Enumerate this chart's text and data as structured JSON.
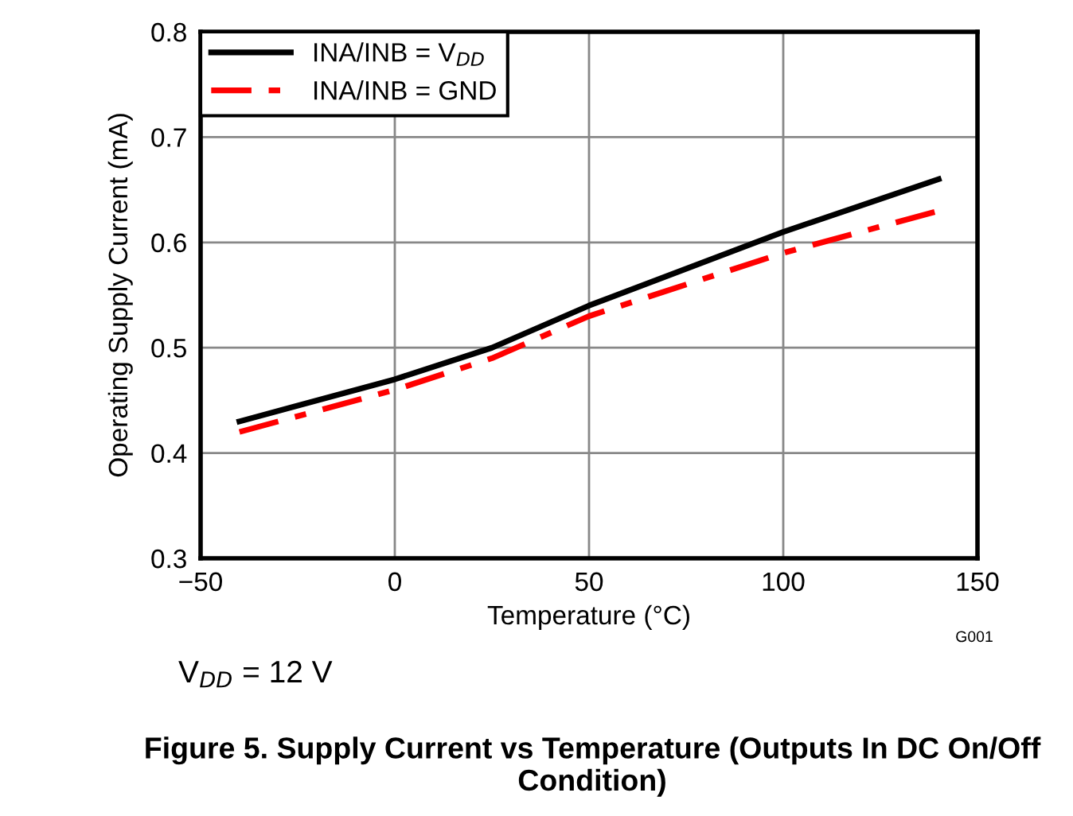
{
  "chart_data": {
    "type": "line",
    "title": "Figure 5. Supply Current vs Temperature (Outputs In DC On/Off Condition)",
    "xlabel": "Temperature (°C)",
    "ylabel": "Operating Supply Current (mA)",
    "x": [
      -40,
      0,
      25,
      50,
      100,
      140
    ],
    "series": [
      {
        "name": "INA/INB = V$_{DD}$",
        "color": "#000000",
        "line_style": "solid",
        "values": [
          0.43,
          0.47,
          0.5,
          0.54,
          0.61,
          0.66
        ]
      },
      {
        "name": "INA/INB = GND",
        "color": "#ff0000",
        "line_style": "dashed",
        "values": [
          0.42,
          0.46,
          0.49,
          0.53,
          0.59,
          0.63
        ]
      }
    ],
    "xlim": [
      -50,
      150
    ],
    "xticks": [
      {
        "value": -50,
        "label": "−50"
      },
      0,
      50,
      100,
      150
    ],
    "ylim": [
      0.3,
      0.8
    ],
    "yticks": [
      0.3,
      0.4,
      0.5,
      0.6,
      0.7,
      0.8
    ],
    "grid": true,
    "legend": "top left",
    "annotations": [
      "G001",
      "V$_{DD}$ = 12 V"
    ]
  }
}
